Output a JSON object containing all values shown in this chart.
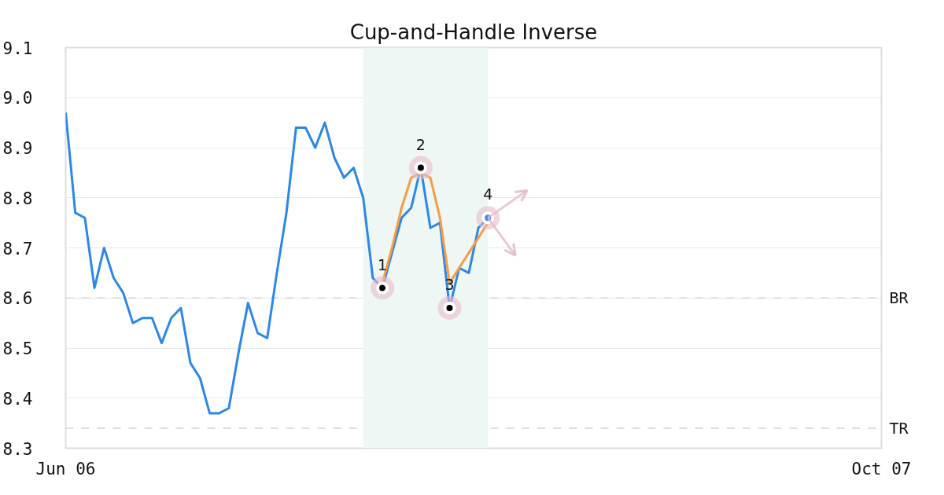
{
  "chart_data": {
    "type": "line",
    "title": "Cup-and-Handle Inverse",
    "categories": [
      "Jun 06",
      null,
      null,
      null,
      null,
      null,
      null,
      null,
      null,
      null,
      null,
      null,
      null,
      null,
      null,
      null,
      null,
      null,
      null,
      null,
      null,
      null,
      null,
      null,
      null,
      null,
      null,
      null,
      null,
      null,
      null,
      null,
      null,
      null,
      null,
      null,
      null,
      null,
      null,
      null,
      null,
      null,
      null,
      null,
      null,
      null,
      null,
      null,
      null,
      null,
      null,
      null,
      null,
      null,
      null,
      null,
      null,
      null,
      null,
      null,
      null,
      null,
      null,
      null,
      null,
      null,
      null,
      null,
      null,
      null,
      null,
      null,
      null,
      null,
      null,
      null,
      null,
      null,
      null,
      null,
      null,
      null,
      null,
      null,
      null,
      "Oct 07"
    ],
    "ylim": [
      8.3,
      9.1
    ],
    "yticks": [
      8.3,
      8.4,
      8.5,
      8.6,
      8.7,
      8.8,
      8.9,
      {
        "value": 9.0,
        "label": "9.0"
      },
      9.1
    ],
    "grid": "y",
    "series": [
      {
        "color": "#2b87e8",
        "values": [
          8.97,
          8.77,
          8.76,
          8.62,
          8.7,
          8.64,
          8.61,
          8.55,
          8.56,
          8.56,
          8.51,
          8.56,
          8.58,
          8.47,
          8.44,
          8.37,
          8.37,
          8.38,
          8.49,
          8.59,
          8.53,
          8.52,
          8.65,
          8.77,
          8.94,
          8.94,
          8.9,
          8.95,
          8.88,
          8.84,
          8.86,
          8.8,
          8.64,
          8.62,
          8.69,
          8.76,
          8.78,
          8.86,
          8.74,
          8.75,
          8.58,
          8.66,
          8.65,
          8.74,
          8.76,
          null,
          null,
          null,
          null,
          null,
          null,
          null,
          null,
          null,
          null,
          null,
          null,
          null,
          null,
          null,
          null,
          null,
          null,
          null,
          null,
          null,
          null,
          null,
          null,
          null,
          null,
          null,
          null,
          null,
          null,
          null,
          null,
          null,
          null,
          null,
          null,
          null,
          null,
          null,
          null,
          null
        ]
      },
      {
        "color": "#f89b45",
        "values": [
          null,
          null,
          null,
          null,
          null,
          null,
          null,
          null,
          null,
          null,
          null,
          null,
          null,
          null,
          null,
          null,
          null,
          null,
          null,
          null,
          null,
          null,
          null,
          null,
          null,
          null,
          null,
          null,
          null,
          null,
          null,
          null,
          null,
          8.63,
          8.7,
          8.78,
          8.84,
          8.85,
          8.84,
          8.76,
          8.63,
          8.66,
          8.69,
          8.72,
          8.75,
          null,
          null,
          null,
          null,
          null,
          null,
          null,
          null,
          null,
          null,
          null,
          null,
          null,
          null,
          null,
          null,
          null,
          null,
          null,
          null,
          null,
          null,
          null,
          null,
          null,
          null,
          null,
          null,
          null,
          null,
          null,
          null,
          null,
          null,
          null,
          null,
          null,
          null,
          null,
          null,
          null
        ]
      },
      {
        "type": "scatter",
        "marker": "circle",
        "values": [
          null,
          null,
          null,
          null,
          null,
          null,
          null,
          null,
          null,
          null,
          null,
          null,
          null,
          null,
          null,
          null,
          null,
          null,
          null,
          null,
          null,
          null,
          null,
          null,
          null,
          null,
          null,
          null,
          null,
          null,
          null,
          null,
          null,
          8.62,
          null,
          null,
          null,
          8.86,
          null,
          null,
          8.58,
          null,
          null,
          null,
          8.76,
          null,
          null,
          null,
          null,
          null,
          null,
          null,
          null,
          null,
          null,
          null,
          null,
          null,
          null,
          null,
          null,
          null,
          null,
          null,
          null,
          null,
          null,
          null,
          null,
          null,
          null,
          null,
          null,
          null,
          null,
          null,
          null,
          null,
          null,
          null,
          null,
          null,
          null,
          null,
          null,
          null
        ],
        "colors": [
          null,
          null,
          null,
          null,
          null,
          null,
          null,
          null,
          null,
          null,
          null,
          null,
          null,
          null,
          null,
          null,
          null,
          null,
          null,
          null,
          null,
          null,
          null,
          null,
          null,
          null,
          null,
          null,
          null,
          null,
          null,
          null,
          null,
          "#000000",
          null,
          null,
          null,
          "#000000",
          null,
          null,
          "#000000",
          null,
          null,
          null,
          "#2b87e8",
          null,
          null,
          null,
          null,
          null,
          null,
          null,
          null,
          null,
          null,
          null,
          null,
          null,
          null,
          null,
          null,
          null,
          null,
          null,
          null,
          null,
          null,
          null,
          null,
          null,
          null,
          null,
          null,
          null,
          null,
          null,
          null,
          null,
          null,
          null,
          null,
          null,
          null,
          null,
          null,
          null
        ]
      }
    ],
    "annotations": [
      {
        "text": "1",
        "y": 8.62
      },
      {
        "text": "2",
        "y": 8.86
      },
      {
        "text": "3",
        "y": 8.58
      },
      {
        "text": "4",
        "y": 8.76
      }
    ],
    "ref_lines": [
      {
        "axis": "y",
        "value": 8.6,
        "label": "BR",
        "color": "#dddddd",
        "line_style": "dashed"
      },
      {
        "axis": "y",
        "value": 8.34,
        "label": "TR",
        "color": "#dddddd",
        "line_style": "dashed"
      }
    ]
  }
}
